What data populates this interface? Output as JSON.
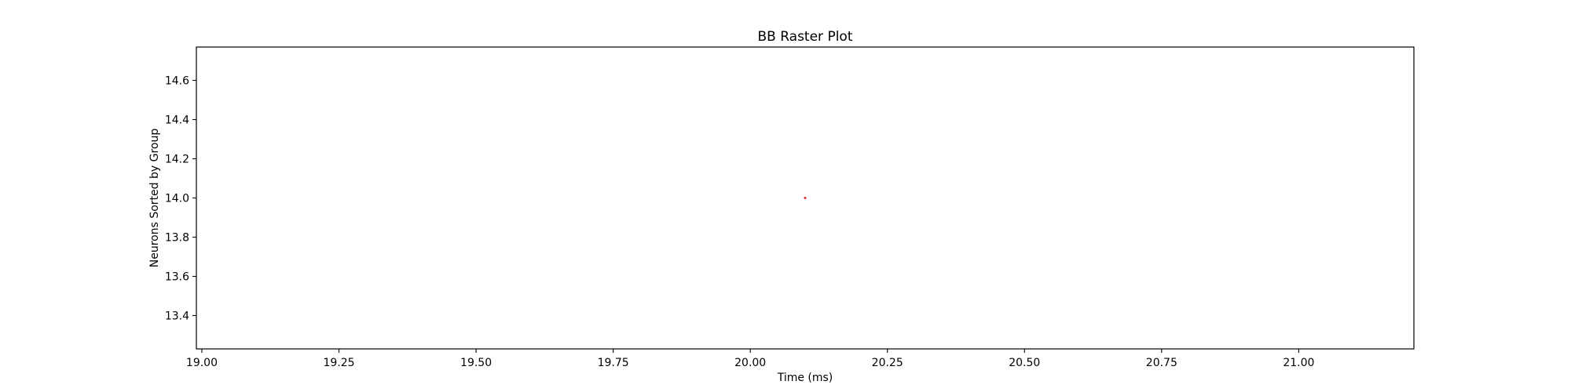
{
  "chart_data": {
    "type": "scatter",
    "title": "BB Raster Plot",
    "xlabel": "Time (ms)",
    "ylabel": "Neurons Sorted by Group",
    "xlim": [
      18.99,
      21.21
    ],
    "ylim": [
      13.23,
      14.77
    ],
    "xticks": [
      19.0,
      19.25,
      19.5,
      19.75,
      20.0,
      20.25,
      20.5,
      20.75,
      21.0
    ],
    "xtick_labels": [
      "19.00",
      "19.25",
      "19.50",
      "19.75",
      "20.00",
      "20.25",
      "20.50",
      "20.75",
      "21.00"
    ],
    "yticks": [
      13.4,
      13.6,
      13.8,
      14.0,
      14.2,
      14.4,
      14.6
    ],
    "ytick_labels": [
      "13.4",
      "13.6",
      "13.8",
      "14.0",
      "14.2",
      "14.4",
      "14.6"
    ],
    "grid": false,
    "series": [
      {
        "color": "#d62728",
        "points": [
          {
            "x": 20.1,
            "y": 14.0
          }
        ]
      }
    ]
  }
}
